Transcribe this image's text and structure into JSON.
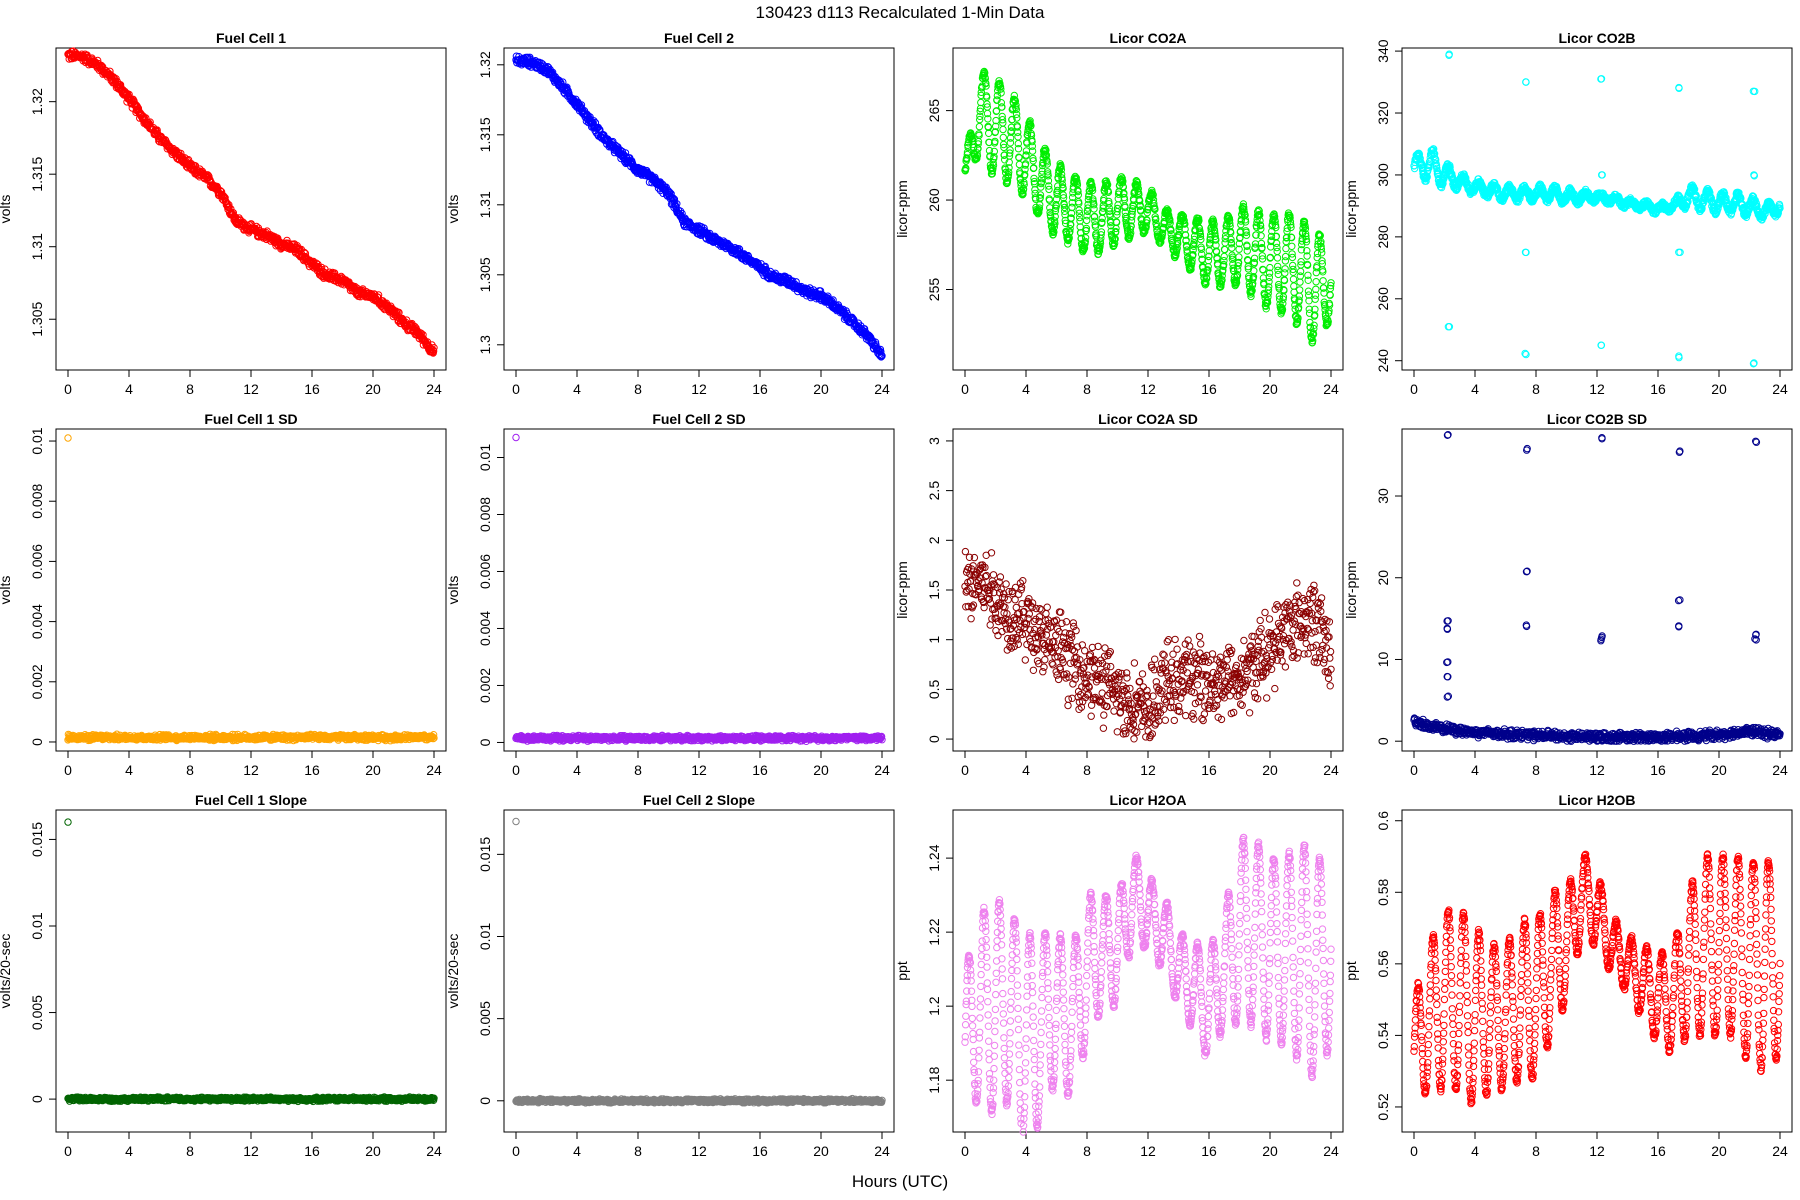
{
  "figure": {
    "title": "130423   d113   Recalculated 1-Min Data",
    "xlabel": "Hours (UTC)"
  },
  "chart_data": [
    {
      "type": "scatter",
      "title": "Fuel Cell 1",
      "ylabel": "volts",
      "color": "#ff0000",
      "xlim": [
        0,
        24
      ],
      "ylim": [
        1.3015,
        1.3237
      ],
      "xticks": [
        0,
        4,
        8,
        12,
        16,
        20,
        24
      ],
      "yticks": [
        1.305,
        1.31,
        1.315,
        1.32
      ],
      "series": [
        {
          "x": [
            0,
            1,
            2,
            3,
            4,
            5,
            6,
            7,
            8,
            9,
            10,
            11,
            12,
            13,
            14,
            15,
            16,
            17,
            18,
            19,
            20,
            21,
            22,
            23,
            24
          ],
          "y": [
            1.3232,
            1.3231,
            1.3225,
            1.3215,
            1.3202,
            1.3188,
            1.3175,
            1.3165,
            1.3155,
            1.3148,
            1.3138,
            1.3118,
            1.3112,
            1.3108,
            1.3102,
            1.3098,
            1.3088,
            1.308,
            1.3077,
            1.3068,
            1.3066,
            1.3058,
            1.3048,
            1.304,
            1.3027
          ]
        }
      ],
      "band": 0.0003,
      "outlier": null
    },
    {
      "type": "scatter",
      "title": "Fuel Cell 2",
      "ylabel": "volts",
      "color": "#0000ff",
      "xlim": [
        0,
        24
      ],
      "ylim": [
        1.2982,
        1.3212
      ],
      "xticks": [
        0,
        4,
        8,
        12,
        16,
        20,
        24
      ],
      "yticks": [
        1.3,
        1.305,
        1.31,
        1.315,
        1.32
      ],
      "series": [
        {
          "x": [
            0,
            1,
            2,
            3,
            4,
            5,
            6,
            7,
            8,
            9,
            10,
            11,
            12,
            13,
            14,
            15,
            16,
            17,
            18,
            19,
            20,
            21,
            22,
            23,
            24
          ],
          "y": [
            1.3203,
            1.3202,
            1.3197,
            1.3185,
            1.3172,
            1.3158,
            1.3145,
            1.3135,
            1.3125,
            1.3118,
            1.3108,
            1.3088,
            1.3082,
            1.3075,
            1.307,
            1.3063,
            1.3055,
            1.3048,
            1.3045,
            1.3038,
            1.3035,
            1.3027,
            1.3017,
            1.3007,
            1.2992
          ]
        }
      ],
      "band": 0.0003,
      "outlier": null
    },
    {
      "type": "scatter",
      "title": "Licor CO2A",
      "ylabel": "licor-ppm",
      "color": "#00ee00",
      "xlim": [
        0,
        24
      ],
      "ylim": [
        250.5,
        268.5
      ],
      "xticks": [
        0,
        4,
        8,
        12,
        16,
        20,
        24
      ],
      "yticks": [
        255,
        260,
        265
      ],
      "series": [
        {
          "x": [
            0,
            1,
            2,
            3,
            4,
            5,
            6,
            7,
            8,
            9,
            10,
            11,
            12,
            13,
            14,
            15,
            16,
            17,
            18,
            19,
            20,
            21,
            22,
            23,
            24
          ],
          "y": [
            261.5,
            265.0,
            264.0,
            263.5,
            262.5,
            261.0,
            260.0,
            259.5,
            259.0,
            259.0,
            259.5,
            259.5,
            259.5,
            258.5,
            258.0,
            257.5,
            257.0,
            257.0,
            257.5,
            257.0,
            256.5,
            256.5,
            256.0,
            255.0,
            255.5
          ]
        }
      ],
      "amp": [
        0.5,
        2.2,
        2.8,
        2.5,
        2.3,
        2.1,
        2.0,
        1.9,
        1.9,
        1.9,
        1.8,
        1.5,
        1.2,
        1.0,
        1.2,
        1.5,
        1.8,
        1.8,
        2.2,
        2.4,
        2.6,
        2.8,
        3.0,
        3.2,
        2.0
      ],
      "period": 1.0,
      "outlier": null
    },
    {
      "type": "scatter",
      "title": "Licor CO2B",
      "ylabel": "licor-ppm",
      "color": "#00ffff",
      "xlim": [
        0,
        24
      ],
      "ylim": [
        237,
        341
      ],
      "xticks": [
        0,
        4,
        8,
        12,
        16,
        20,
        24
      ],
      "yticks": [
        240,
        260,
        280,
        300,
        320,
        340
      ],
      "series": [
        {
          "x": [
            0,
            1,
            2,
            3,
            4,
            5,
            6,
            7,
            8,
            9,
            10,
            11,
            12,
            13,
            14,
            15,
            16,
            17,
            18,
            19,
            20,
            21,
            22,
            23,
            24
          ],
          "y": [
            302,
            304,
            300,
            298,
            296,
            295,
            294,
            294,
            294,
            294,
            293,
            293,
            293,
            292,
            291,
            290,
            289,
            290,
            293,
            292,
            291,
            291,
            290,
            288,
            290
          ]
        }
      ],
      "amp": [
        4,
        5,
        4,
        2,
        2,
        2,
        2,
        2,
        2,
        2,
        2,
        1.5,
        1,
        1,
        1,
        1,
        1,
        1,
        3,
        3,
        3,
        3,
        3,
        2,
        2
      ],
      "period": 1.0,
      "spikes_x": [
        2.3,
        7.3,
        12.3,
        17.4,
        22.3
      ],
      "spikes_y": [
        [
          251,
          300,
          339
        ],
        [
          242,
          275,
          330
        ],
        [
          245,
          300,
          331
        ],
        [
          241,
          275,
          328
        ],
        [
          239,
          300,
          327
        ]
      ]
    },
    {
      "type": "scatter",
      "title": "Fuel Cell 1 SD",
      "ylabel": "volts",
      "color": "#ffa500",
      "xlim": [
        0,
        24
      ],
      "ylim": [
        -0.0003,
        0.0104
      ],
      "xticks": [
        0,
        4,
        8,
        12,
        16,
        20,
        24
      ],
      "yticks": [
        0,
        0.002,
        0.004,
        0.006,
        0.008,
        0.01
      ],
      "series": [
        {
          "x": [
            0,
            24
          ],
          "y": [
            0.00015,
            0.00015
          ]
        }
      ],
      "band": 8e-05,
      "outlier": [
        0,
        0.0101
      ]
    },
    {
      "type": "scatter",
      "title": "Fuel Cell 2 SD",
      "ylabel": "volts",
      "color": "#a020f0",
      "xlim": [
        0,
        24
      ],
      "ylim": [
        -0.0003,
        0.011
      ],
      "xticks": [
        0,
        4,
        8,
        12,
        16,
        20,
        24
      ],
      "yticks": [
        0,
        0.002,
        0.004,
        0.006,
        0.008,
        0.01
      ],
      "series": [
        {
          "x": [
            0,
            24
          ],
          "y": [
            0.00015,
            0.00015
          ]
        }
      ],
      "band": 8e-05,
      "outlier": [
        0,
        0.0107
      ]
    },
    {
      "type": "scatter",
      "title": "Licor CO2A SD",
      "ylabel": "licor-ppm",
      "color": "#8b0000",
      "xlim": [
        0,
        24
      ],
      "ylim": [
        -0.12,
        3.12
      ],
      "xticks": [
        0,
        4,
        8,
        12,
        16,
        20,
        24
      ],
      "yticks": [
        0,
        0.5,
        1,
        1.5,
        2,
        2.5,
        3
      ],
      "series": [
        {
          "x": [
            0,
            1,
            2,
            3,
            4,
            5,
            6,
            7,
            8,
            9,
            10,
            11,
            12,
            13,
            14,
            15,
            16,
            17,
            18,
            19,
            20,
            21,
            22,
            23,
            24
          ],
          "y": [
            1.5,
            1.6,
            1.4,
            1.3,
            1.2,
            1.0,
            0.9,
            0.8,
            0.65,
            0.55,
            0.45,
            0.35,
            0.25,
            0.55,
            0.6,
            0.62,
            0.6,
            0.6,
            0.6,
            0.75,
            0.9,
            1.1,
            1.2,
            1.2,
            0.8
          ]
        }
      ],
      "band": 0.35,
      "outlier": null
    },
    {
      "type": "scatter",
      "title": "Licor CO2B SD",
      "ylabel": "licor-ppm",
      "color": "#00008b",
      "xlim": [
        0,
        24
      ],
      "ylim": [
        -1.2,
        38.2
      ],
      "xticks": [
        0,
        4,
        8,
        12,
        16,
        20,
        24
      ],
      "yticks": [
        0,
        10,
        20,
        30
      ],
      "series": [
        {
          "x": [
            0,
            1,
            2,
            3,
            4,
            6,
            8,
            10,
            12,
            14,
            16,
            18,
            20,
            22,
            24
          ],
          "y": [
            2.5,
            1.8,
            1.5,
            1.3,
            1.1,
            0.9,
            0.7,
            0.6,
            0.5,
            0.5,
            0.5,
            0.6,
            0.8,
            1.2,
            0.8
          ]
        }
      ],
      "band": 0.5,
      "spikes_x": [
        2.2,
        7.4,
        12.3,
        17.4,
        22.4
      ],
      "spikes_y": [
        [
          13.8,
          14.7,
          9.7,
          7.9,
          5.5,
          37.5
        ],
        [
          14.2,
          20.8,
          35.8
        ],
        [
          12.3,
          12.7,
          37.0
        ],
        [
          14.0,
          17.2,
          35.5
        ],
        [
          13.0,
          12.4,
          36.7
        ]
      ]
    },
    {
      "type": "scatter",
      "title": "Fuel Cell 1 Slope",
      "ylabel": "volts/20-sec",
      "color": "#006400",
      "xlim": [
        0,
        24
      ],
      "ylim": [
        -0.0019,
        0.0167
      ],
      "xticks": [
        0,
        4,
        8,
        12,
        16,
        20,
        24
      ],
      "yticks": [
        0,
        0.005,
        0.01,
        0.015
      ],
      "series": [
        {
          "x": [
            0,
            24
          ],
          "y": [
            0.0,
            0.0
          ]
        }
      ],
      "band": 0.0001,
      "outlier": [
        0,
        0.016
      ]
    },
    {
      "type": "scatter",
      "title": "Fuel Cell 2 Slope",
      "ylabel": "volts/20-sec",
      "color": "#808080",
      "xlim": [
        0,
        24
      ],
      "ylim": [
        -0.0019,
        0.0177
      ],
      "xticks": [
        0,
        4,
        8,
        12,
        16,
        20,
        24
      ],
      "yticks": [
        0,
        0.005,
        0.01,
        0.015
      ],
      "series": [
        {
          "x": [
            0,
            24
          ],
          "y": [
            0.0,
            0.0
          ]
        }
      ],
      "band": 0.0001,
      "outlier": [
        0,
        0.017
      ]
    },
    {
      "type": "scatter",
      "title": "Licor H2OA",
      "ylabel": "ppt",
      "color": "#ee82ee",
      "xlim": [
        0,
        24
      ],
      "ylim": [
        1.166,
        1.253
      ],
      "xticks": [
        0,
        4,
        8,
        12,
        16,
        20,
        24
      ],
      "yticks": [
        1.18,
        1.2,
        1.22,
        1.24
      ],
      "series": [
        {
          "x": [
            0,
            1,
            2,
            3,
            4,
            5,
            6,
            7,
            8,
            9,
            10,
            11,
            12,
            13,
            14,
            15,
            16,
            17,
            18,
            19,
            20,
            21,
            22,
            23,
            24
          ],
          "y": [
            1.19,
            1.2,
            1.2,
            1.2,
            1.19,
            1.195,
            1.2,
            1.195,
            1.21,
            1.215,
            1.215,
            1.23,
            1.225,
            1.22,
            1.21,
            1.205,
            1.2,
            1.21,
            1.22,
            1.22,
            1.215,
            1.215,
            1.215,
            1.21,
            1.215
          ]
        }
      ],
      "amp": [
        0.02,
        0.025,
        0.03,
        0.025,
        0.03,
        0.025,
        0.02,
        0.02,
        0.02,
        0.015,
        0.015,
        0.012,
        0.01,
        0.01,
        0.01,
        0.012,
        0.015,
        0.015,
        0.025,
        0.025,
        0.025,
        0.025,
        0.03,
        0.03,
        0.025
      ],
      "period": 1.0,
      "outlier": null
    },
    {
      "type": "scatter",
      "title": "Licor H2OB",
      "ylabel": "ppt",
      "color": "#ff0000",
      "xlim": [
        0,
        24
      ],
      "ylim": [
        0.513,
        0.603
      ],
      "xticks": [
        0,
        4,
        8,
        12,
        16,
        20,
        24
      ],
      "yticks": [
        0.52,
        0.54,
        0.56,
        0.58,
        0.6
      ],
      "series": [
        {
          "x": [
            0,
            1,
            2,
            3,
            4,
            5,
            6,
            7,
            8,
            9,
            10,
            11,
            12,
            13,
            14,
            15,
            16,
            17,
            18,
            19,
            20,
            21,
            22,
            23,
            24
          ],
          "y": [
            0.535,
            0.545,
            0.55,
            0.55,
            0.545,
            0.545,
            0.545,
            0.55,
            0.55,
            0.56,
            0.565,
            0.58,
            0.575,
            0.565,
            0.56,
            0.555,
            0.55,
            0.55,
            0.56,
            0.565,
            0.565,
            0.565,
            0.56,
            0.56,
            0.56
          ]
        }
      ],
      "amp": [
        0.015,
        0.02,
        0.025,
        0.025,
        0.025,
        0.02,
        0.02,
        0.022,
        0.022,
        0.02,
        0.015,
        0.012,
        0.01,
        0.008,
        0.008,
        0.01,
        0.012,
        0.015,
        0.02,
        0.025,
        0.025,
        0.025,
        0.028,
        0.03,
        0.025
      ],
      "period": 1.0,
      "outlier": null
    }
  ]
}
